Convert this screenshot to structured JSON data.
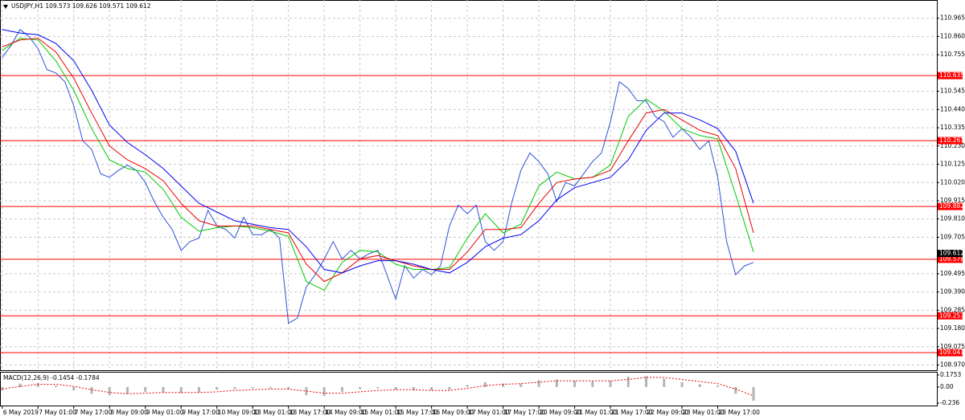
{
  "chart_data": [
    {
      "type": "line",
      "title": "USDJPY,H1 109.573 109.626 109.571 109.612",
      "xlim": [
        -1,
        418
      ],
      "ylim": [
        108.94,
        111.07
      ],
      "xticks": [
        {
          "value": 0,
          "label": "6 May 2019"
        },
        {
          "value": 16,
          "label": "7 May 01:00"
        },
        {
          "value": 32,
          "label": "7 May 17:00"
        },
        {
          "value": 48,
          "label": "8 May 09:00"
        },
        {
          "value": 64,
          "label": "9 May 01:00"
        },
        {
          "value": 80,
          "label": "9 May 17:00"
        },
        {
          "value": 96,
          "label": "10 May 09:00"
        },
        {
          "value": 112,
          "label": "13 May 01:00"
        },
        {
          "value": 128,
          "label": "13 May 17:00"
        },
        {
          "value": 144,
          "label": "14 May 09:00"
        },
        {
          "value": 160,
          "label": "15 May 01:00"
        },
        {
          "value": 176,
          "label": "15 May 17:00"
        },
        {
          "value": 192,
          "label": "16 May 09:00"
        },
        {
          "value": 208,
          "label": "17 May 01:00"
        },
        {
          "value": 224,
          "label": "17 May 17:00"
        },
        {
          "value": 240,
          "label": "20 May 09:00"
        },
        {
          "value": 256,
          "label": "21 May 01:00"
        },
        {
          "value": 272,
          "label": "21 May 17:00"
        },
        {
          "value": 288,
          "label": "22 May 09:00"
        },
        {
          "value": 304,
          "label": "23 May 01:00"
        },
        {
          "value": 320,
          "label": "23 May 17:00"
        }
      ],
      "yticks": [
        110.965,
        {
          "value": 110.86,
          "label": "110.860"
        },
        110.755,
        110.545,
        {
          "value": 110.44,
          "label": "110.440"
        },
        110.335,
        {
          "value": 110.23,
          "label": "110.230"
        },
        110.125,
        {
          "value": 110.02,
          "label": "110.020"
        },
        109.915,
        {
          "value": 109.81,
          "label": "109.810"
        },
        109.705,
        109.495,
        {
          "value": 109.39,
          "label": "109.390"
        },
        109.285,
        {
          "value": 109.18,
          "label": "109.180"
        },
        109.075,
        {
          "value": 108.97,
          "label": "108.970"
        }
      ],
      "grid": true,
      "levels": [
        110.635,
        110.261,
        109.882,
        109.578,
        109.253,
        109.041
      ],
      "level_color": "#ff0000",
      "current_price": 109.612,
      "series": [
        {
          "color": "#2f52d8",
          "style": "line",
          "x": [
            0,
            4,
            8,
            12,
            16,
            20,
            24,
            28,
            32,
            36,
            40,
            44,
            48,
            52,
            56,
            60,
            64,
            68,
            72,
            76,
            80,
            84,
            88,
            92,
            96,
            100,
            104,
            108,
            112,
            116,
            120,
            124,
            128,
            132,
            136,
            140,
            144,
            148,
            152,
            156,
            160,
            164,
            168,
            172,
            176,
            180,
            184,
            188,
            192,
            196,
            200,
            204,
            208,
            212,
            216,
            220,
            224,
            228,
            232,
            236,
            240,
            244,
            248,
            252,
            256,
            260,
            264,
            268,
            272,
            276,
            280,
            284,
            288,
            292,
            296,
            300,
            304,
            308,
            312,
            316,
            320,
            324,
            328,
            332,
            336
          ],
          "values": [
            110.74,
            110.81,
            110.9,
            110.86,
            110.79,
            110.67,
            110.65,
            110.6,
            110.46,
            110.26,
            110.21,
            110.07,
            110.05,
            110.09,
            110.12,
            110.09,
            110.02,
            109.91,
            109.82,
            109.75,
            109.63,
            109.68,
            109.7,
            109.86,
            109.77,
            109.75,
            109.7,
            109.82,
            109.72,
            109.72,
            109.75,
            109.7,
            109.21,
            109.24,
            109.42,
            109.49,
            109.58,
            109.68,
            109.58,
            109.63,
            109.58,
            109.61,
            109.63,
            109.49,
            109.35,
            109.54,
            109.47,
            109.52,
            109.49,
            109.54,
            109.77,
            109.89,
            109.84,
            109.89,
            109.68,
            109.63,
            109.68,
            109.91,
            110.09,
            110.19,
            110.14,
            110.07,
            109.91,
            110.02,
            110.0,
            110.07,
            110.14,
            110.19,
            110.37,
            110.6,
            110.56,
            110.49,
            110.49,
            110.4,
            110.37,
            110.28,
            110.33,
            110.28,
            110.21,
            110.26,
            110.05,
            109.68,
            109.49,
            109.54,
            109.56
          ]
        },
        {
          "color": "#00c800",
          "style": "line",
          "x": [
            0,
            8,
            16,
            24,
            32,
            40,
            48,
            56,
            64,
            72,
            80,
            88,
            96,
            104,
            112,
            120,
            128,
            136,
            144,
            152,
            160,
            168,
            176,
            184,
            192,
            200,
            208,
            216,
            224,
            232,
            240,
            248,
            256,
            264,
            272,
            280,
            288,
            296,
            304,
            312,
            320,
            328,
            336
          ],
          "values": [
            110.78,
            110.85,
            110.84,
            110.72,
            110.55,
            110.33,
            110.15,
            110.1,
            110.08,
            109.98,
            109.82,
            109.74,
            109.76,
            109.77,
            109.76,
            109.74,
            109.71,
            109.45,
            109.4,
            109.56,
            109.63,
            109.62,
            109.55,
            109.52,
            109.52,
            109.53,
            109.7,
            109.84,
            109.73,
            109.78,
            110.0,
            110.08,
            110.04,
            110.05,
            110.12,
            110.4,
            110.5,
            110.43,
            110.33,
            110.29,
            110.27,
            109.95,
            109.62
          ]
        },
        {
          "color": "#e80000",
          "style": "line",
          "x": [
            0,
            8,
            16,
            24,
            32,
            40,
            48,
            56,
            64,
            72,
            80,
            88,
            96,
            104,
            112,
            120,
            128,
            136,
            144,
            152,
            160,
            168,
            176,
            184,
            192,
            200,
            208,
            216,
            224,
            232,
            240,
            248,
            256,
            264,
            272,
            280,
            288,
            296,
            304,
            312,
            320,
            328,
            336
          ],
          "values": [
            110.8,
            110.84,
            110.85,
            110.77,
            110.62,
            110.42,
            110.23,
            110.15,
            110.1,
            110.03,
            109.9,
            109.8,
            109.77,
            109.77,
            109.77,
            109.75,
            109.73,
            109.55,
            109.45,
            109.5,
            109.58,
            109.6,
            109.57,
            109.54,
            109.52,
            109.52,
            109.62,
            109.75,
            109.75,
            109.76,
            109.9,
            110.02,
            110.04,
            110.05,
            110.09,
            110.26,
            110.42,
            110.44,
            110.38,
            110.32,
            110.29,
            110.1,
            109.73
          ]
        },
        {
          "color": "#0000f0",
          "style": "line",
          "x": [
            0,
            8,
            16,
            24,
            32,
            40,
            48,
            56,
            64,
            72,
            80,
            88,
            96,
            104,
            112,
            120,
            128,
            136,
            144,
            152,
            160,
            168,
            176,
            184,
            192,
            200,
            208,
            216,
            224,
            232,
            240,
            248,
            256,
            264,
            272,
            280,
            288,
            296,
            304,
            312,
            320,
            328,
            336
          ],
          "values": [
            110.9,
            110.88,
            110.87,
            110.82,
            110.72,
            110.55,
            110.35,
            110.25,
            110.18,
            110.1,
            110.0,
            109.9,
            109.85,
            109.8,
            109.78,
            109.76,
            109.75,
            109.65,
            109.52,
            109.5,
            109.54,
            109.57,
            109.57,
            109.55,
            109.52,
            109.5,
            109.56,
            109.65,
            109.7,
            109.72,
            109.8,
            109.92,
            109.99,
            110.02,
            110.05,
            110.15,
            110.32,
            110.42,
            110.42,
            110.38,
            110.33,
            110.2,
            109.9
          ]
        }
      ]
    },
    {
      "type": "macd",
      "title": "MACD(12,26,9) -0.1454 -0.1784",
      "xlim": [
        -1,
        418
      ],
      "ylim": [
        -0.271,
        0.222
      ],
      "yticks": [
        0.1753,
        {
          "value": 0,
          "label": "0.00"
        },
        -0.236
      ],
      "series": [
        {
          "color": "#b4b4b4",
          "style": "bar",
          "x": [
            0,
            8,
            16,
            24,
            32,
            40,
            48,
            56,
            64,
            72,
            80,
            88,
            96,
            104,
            112,
            120,
            128,
            136,
            144,
            152,
            160,
            168,
            176,
            184,
            192,
            200,
            208,
            216,
            224,
            232,
            240,
            248,
            256,
            264,
            272,
            280,
            288,
            296,
            304,
            312,
            320,
            328,
            336
          ],
          "values": [
            -0.05,
            0.05,
            0.06,
            0.02,
            -0.05,
            -0.1,
            -0.12,
            -0.1,
            -0.07,
            -0.08,
            -0.09,
            -0.08,
            -0.04,
            -0.03,
            -0.02,
            -0.02,
            -0.03,
            -0.12,
            -0.13,
            -0.07,
            -0.03,
            -0.02,
            -0.04,
            -0.05,
            -0.05,
            -0.04,
            0.03,
            0.07,
            0.05,
            0.05,
            0.1,
            0.11,
            0.09,
            0.08,
            0.09,
            0.15,
            0.16,
            0.12,
            0.07,
            0.04,
            0.02,
            -0.1,
            -0.2
          ]
        },
        {
          "color": "#e80000",
          "style": "dash",
          "x": [
            0,
            8,
            16,
            24,
            32,
            40,
            48,
            56,
            64,
            72,
            80,
            88,
            96,
            104,
            112,
            120,
            128,
            136,
            144,
            152,
            160,
            168,
            176,
            184,
            192,
            200,
            208,
            216,
            224,
            232,
            240,
            248,
            256,
            264,
            272,
            280,
            288,
            296,
            304,
            312,
            320,
            328,
            336
          ],
          "values": [
            -0.03,
            0.01,
            0.04,
            0.04,
            0.01,
            -0.04,
            -0.08,
            -0.1,
            -0.09,
            -0.08,
            -0.08,
            -0.08,
            -0.07,
            -0.05,
            -0.04,
            -0.03,
            -0.03,
            -0.06,
            -0.09,
            -0.09,
            -0.07,
            -0.05,
            -0.04,
            -0.04,
            -0.05,
            -0.05,
            -0.02,
            0.02,
            0.04,
            0.05,
            0.07,
            0.09,
            0.09,
            0.09,
            0.09,
            0.11,
            0.14,
            0.14,
            0.11,
            0.08,
            0.05,
            -0.03,
            -0.13
          ]
        }
      ]
    }
  ]
}
